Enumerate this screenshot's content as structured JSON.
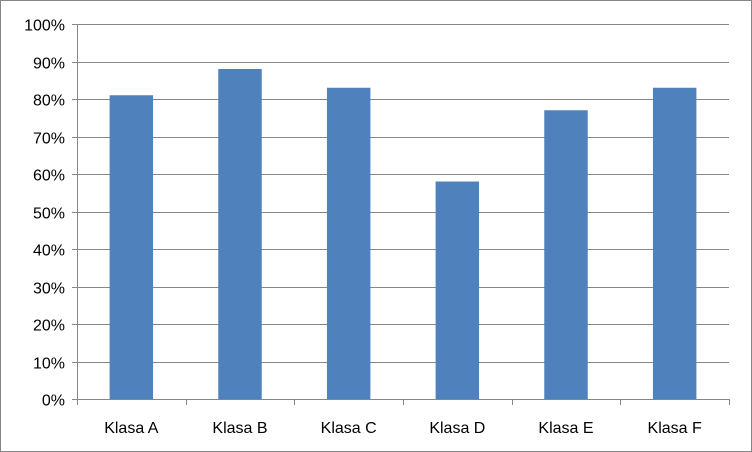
{
  "chart_data": {
    "type": "bar",
    "categories": [
      "Klasa A",
      "Klasa B",
      "Klasa C",
      "Klasa D",
      "Klasa E",
      "Klasa F"
    ],
    "values": [
      81,
      88,
      83,
      58,
      77,
      83
    ],
    "value_unit": "%",
    "y_ticks": [
      "0%",
      "10%",
      "20%",
      "30%",
      "40%",
      "50%",
      "60%",
      "70%",
      "80%",
      "90%",
      "100%"
    ],
    "ylim": [
      0,
      100
    ],
    "grid": true,
    "legend": "none",
    "title": "",
    "xlabel": "",
    "ylabel": "",
    "colors": {
      "bar": "#4F81BD",
      "grid": "#868686",
      "axis": "#868686",
      "border": "#868686"
    }
  }
}
